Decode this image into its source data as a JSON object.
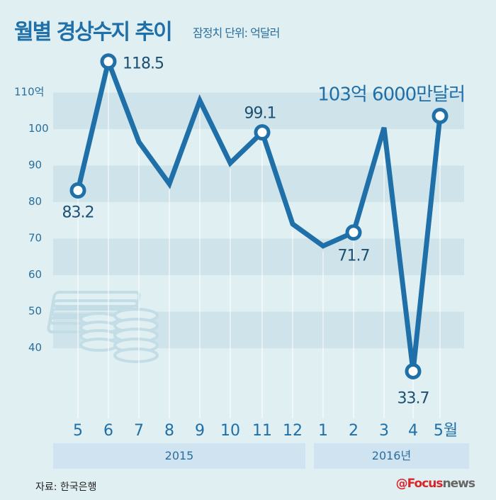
{
  "title": "월별 경상수지 추이",
  "subtitle": "잠정치  단위: 억달러",
  "chart_data": {
    "type": "line",
    "categories": [
      "5",
      "6",
      "7",
      "8",
      "9",
      "10",
      "11",
      "12",
      "1",
      "2",
      "3",
      "4",
      "5월"
    ],
    "values": [
      83.2,
      118.5,
      96.5,
      85,
      107.8,
      90.7,
      99.1,
      74,
      68,
      71.7,
      100.4,
      33.7,
      103.6
    ],
    "data_labels": {
      "0": "83.2",
      "1": "118.5",
      "6": "99.1",
      "9": "71.7",
      "11": "33.7",
      "12": "103억 6000만달러"
    },
    "yticks": [
      "110억",
      "100",
      "90",
      "80",
      "70",
      "60",
      "50",
      "40"
    ],
    "ylim": [
      30,
      115
    ],
    "groups": [
      "2015",
      "2016년"
    ],
    "color": "#1f6fa8",
    "grid": true
  },
  "source": "자료: 한국은행",
  "logo": "Focusnews"
}
